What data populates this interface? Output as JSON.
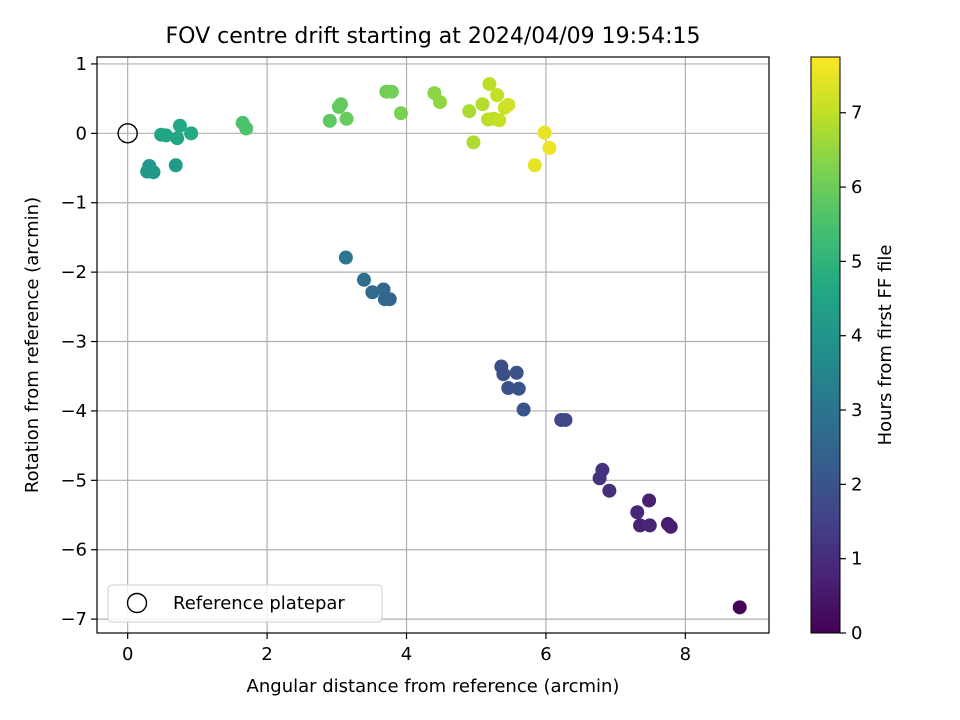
{
  "chart_data": {
    "type": "scatter",
    "title": "FOV centre drift starting at 2024/04/09 19:54:15",
    "xlabel": "Angular distance from reference (arcmin)",
    "ylabel": "Rotation from reference (arcmin)",
    "xlim": [
      -0.44,
      9.2
    ],
    "ylim": [
      -7.2,
      1.1
    ],
    "xticks": [
      0,
      2,
      4,
      6,
      8
    ],
    "yticks": [
      1,
      0,
      -1,
      -2,
      -3,
      -4,
      -5,
      -6,
      -7
    ],
    "grid": true,
    "legend": {
      "placement": "lower-left",
      "entries": [
        "Reference platepar"
      ]
    },
    "reference_point": {
      "x": 0,
      "y": 0,
      "label": "Reference platepar"
    },
    "colorbar": {
      "label": "Hours from first FF file",
      "colormap": "viridis",
      "range": [
        0,
        7.75
      ],
      "ticks": [
        0,
        1,
        2,
        3,
        4,
        5,
        6,
        7
      ]
    },
    "points": [
      {
        "x": 8.78,
        "y": -6.83,
        "h": 0.05
      },
      {
        "x": 7.75,
        "y": -5.63,
        "h": 0.6
      },
      {
        "x": 7.79,
        "y": -5.67,
        "h": 0.65
      },
      {
        "x": 7.48,
        "y": -5.29,
        "h": 0.7
      },
      {
        "x": 7.35,
        "y": -5.65,
        "h": 0.75
      },
      {
        "x": 7.49,
        "y": -5.65,
        "h": 0.8
      },
      {
        "x": 7.31,
        "y": -5.46,
        "h": 0.85
      },
      {
        "x": 6.91,
        "y": -5.15,
        "h": 1.05
      },
      {
        "x": 6.81,
        "y": -4.85,
        "h": 1.1
      },
      {
        "x": 6.77,
        "y": -4.97,
        "h": 1.15
      },
      {
        "x": 6.22,
        "y": -4.13,
        "h": 1.65
      },
      {
        "x": 6.28,
        "y": -4.13,
        "h": 1.7
      },
      {
        "x": 5.36,
        "y": -3.36,
        "h": 1.8
      },
      {
        "x": 5.39,
        "y": -3.47,
        "h": 1.85
      },
      {
        "x": 5.58,
        "y": -3.45,
        "h": 1.9
      },
      {
        "x": 5.46,
        "y": -3.67,
        "h": 1.95
      },
      {
        "x": 5.61,
        "y": -3.68,
        "h": 2.0
      },
      {
        "x": 5.68,
        "y": -3.98,
        "h": 2.05
      },
      {
        "x": 3.13,
        "y": -1.79,
        "h": 3.0
      },
      {
        "x": 3.39,
        "y": -2.11,
        "h": 2.85
      },
      {
        "x": 3.51,
        "y": -2.29,
        "h": 2.7
      },
      {
        "x": 3.67,
        "y": -2.25,
        "h": 2.65
      },
      {
        "x": 3.69,
        "y": -2.39,
        "h": 2.6
      },
      {
        "x": 3.76,
        "y": -2.39,
        "h": 2.55
      },
      {
        "x": 0.31,
        "y": -0.47,
        "h": 4.05
      },
      {
        "x": 0.28,
        "y": -0.55,
        "h": 4.1
      },
      {
        "x": 0.37,
        "y": -0.56,
        "h": 4.15
      },
      {
        "x": 0.69,
        "y": -0.46,
        "h": 4.2
      },
      {
        "x": 0.48,
        "y": -0.02,
        "h": 4.5
      },
      {
        "x": 0.55,
        "y": -0.03,
        "h": 4.55
      },
      {
        "x": 0.71,
        "y": -0.07,
        "h": 4.6
      },
      {
        "x": 0.75,
        "y": 0.11,
        "h": 4.65
      },
      {
        "x": 0.91,
        "y": 0.0,
        "h": 4.7
      },
      {
        "x": 1.65,
        "y": 0.15,
        "h": 5.5
      },
      {
        "x": 1.7,
        "y": 0.07,
        "h": 5.55
      },
      {
        "x": 2.9,
        "y": 0.18,
        "h": 5.8
      },
      {
        "x": 3.03,
        "y": 0.38,
        "h": 5.85
      },
      {
        "x": 3.06,
        "y": 0.42,
        "h": 5.9
      },
      {
        "x": 3.14,
        "y": 0.21,
        "h": 5.95
      },
      {
        "x": 3.71,
        "y": 0.6,
        "h": 6.05
      },
      {
        "x": 3.79,
        "y": 0.6,
        "h": 6.1
      },
      {
        "x": 3.92,
        "y": 0.29,
        "h": 6.2
      },
      {
        "x": 4.4,
        "y": 0.58,
        "h": 6.4
      },
      {
        "x": 4.48,
        "y": 0.45,
        "h": 6.45
      },
      {
        "x": 4.9,
        "y": 0.32,
        "h": 6.75
      },
      {
        "x": 4.96,
        "y": -0.13,
        "h": 6.8
      },
      {
        "x": 5.09,
        "y": 0.42,
        "h": 6.85
      },
      {
        "x": 5.17,
        "y": 0.2,
        "h": 6.9
      },
      {
        "x": 5.19,
        "y": 0.71,
        "h": 6.95
      },
      {
        "x": 5.25,
        "y": 0.21,
        "h": 7.0
      },
      {
        "x": 5.3,
        "y": 0.55,
        "h": 7.05
      },
      {
        "x": 5.33,
        "y": 0.19,
        "h": 7.1
      },
      {
        "x": 5.41,
        "y": 0.37,
        "h": 7.15
      },
      {
        "x": 5.46,
        "y": 0.41,
        "h": 7.2
      },
      {
        "x": 5.98,
        "y": 0.01,
        "h": 7.5
      },
      {
        "x": 6.05,
        "y": -0.21,
        "h": 7.55
      },
      {
        "x": 5.84,
        "y": -0.46,
        "h": 7.45
      }
    ]
  }
}
